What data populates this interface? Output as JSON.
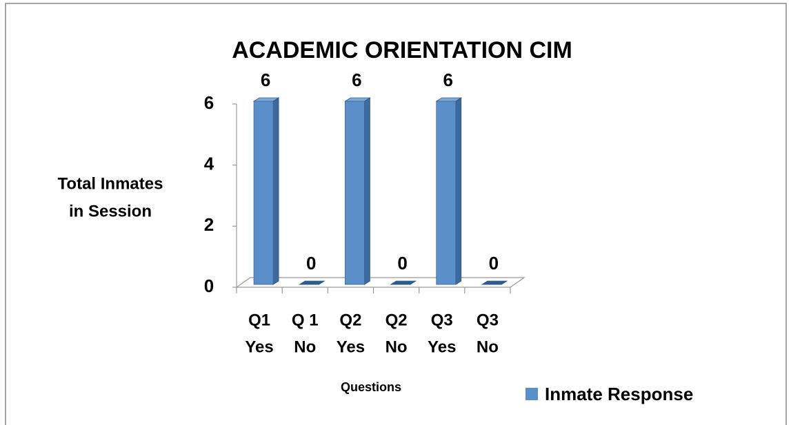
{
  "chart_data": {
    "type": "bar3d",
    "title": "ACADEMIC ORIENTATION CIM",
    "categories": [
      [
        "Q1",
        "Yes"
      ],
      [
        "Q 1",
        "No"
      ],
      [
        "Q2",
        "Yes"
      ],
      [
        "Q2",
        "No"
      ],
      [
        "Q3",
        "Yes"
      ],
      [
        "Q3",
        "No"
      ]
    ],
    "series": [
      {
        "name": "Inmate Response",
        "color": "#5b8fc9",
        "values": [
          6,
          0,
          6,
          0,
          6,
          0
        ]
      }
    ],
    "ylim": [
      0,
      6
    ],
    "yticks": [
      0,
      2,
      4,
      6
    ],
    "y_label": [
      "Total Inmates",
      "in Session"
    ],
    "x_label": "Questions",
    "legend": "bottom-right"
  }
}
